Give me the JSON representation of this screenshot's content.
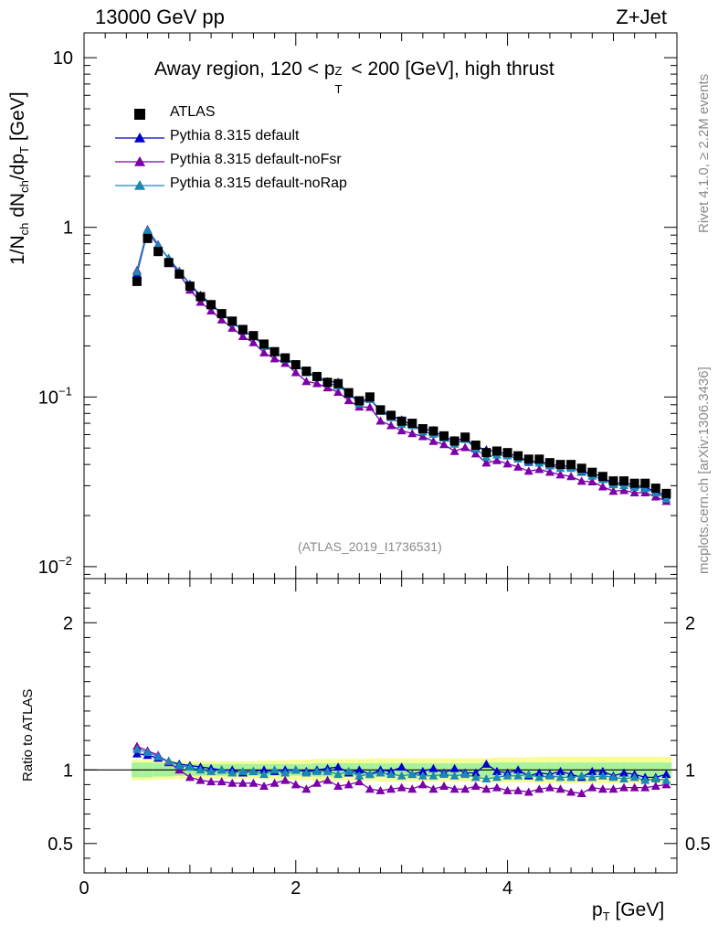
{
  "header": {
    "left": "13000 GeV pp",
    "right": "Z+Jet"
  },
  "title": {
    "prefix": "Away region, 120 < p",
    "sup": "Z",
    "sub": "T",
    "suffix": " < 200 [GeV], high thrust"
  },
  "side_text": {
    "rivet": "Rivet 4.1.0, ≥ 2.2M events",
    "mcplots": "mcplots.cern.ch [arXiv:1306.3436]"
  },
  "watermark": "(ATLAS_2019_I1736531)",
  "ylabel_top": {
    "a": "1/N",
    "a_sub": "ch",
    "b": " dN",
    "b_sub": "ch",
    "c": "/dp",
    "c_sub": "T",
    "d": " [GeV]"
  },
  "ylabel_bottom": "Ratio to ATLAS",
  "xlabel": {
    "main": "p",
    "sub": "T",
    "unit": " [GeV]"
  },
  "legend": [
    {
      "label": "ATLAS",
      "color": "#000000",
      "marker": "square"
    },
    {
      "label": "Pythia 8.315 default",
      "color": "#0000cc",
      "marker": "triangle"
    },
    {
      "label": "Pythia 8.315 default-noFsr",
      "color": "#7b00a8",
      "marker": "triangle"
    },
    {
      "label": "Pythia 8.315 default-noRap",
      "color": "#1a8ab4",
      "marker": "triangle"
    }
  ],
  "chart_data": {
    "type": "line",
    "xlim": [
      0,
      5.6
    ],
    "upper": {
      "scale": "log",
      "ylim": [
        0.0085,
        14
      ],
      "yticks": [
        {
          "value": 10,
          "label": "10"
        },
        {
          "value": 1,
          "label": "1"
        },
        {
          "value": 0.1,
          "label": "10",
          "exp": "−1"
        },
        {
          "value": 0.01,
          "label": "10",
          "exp": "−2"
        }
      ]
    },
    "lower": {
      "scale": "linear",
      "ylim": [
        0.3,
        2.3
      ],
      "yticks": [
        {
          "value": 0.5,
          "label": "0.5"
        },
        {
          "value": 1,
          "label": "1"
        },
        {
          "value": 2,
          "label": "2"
        }
      ],
      "reference_line": 1
    },
    "xticks": [
      {
        "value": 0,
        "label": "0"
      },
      {
        "value": 2,
        "label": "2"
      },
      {
        "value": 4,
        "label": "4"
      }
    ],
    "x": [
      0.5,
      0.6,
      0.7,
      0.8,
      0.9,
      1.0,
      1.1,
      1.2,
      1.3,
      1.4,
      1.5,
      1.6,
      1.7,
      1.8,
      1.9,
      2.0,
      2.1,
      2.2,
      2.3,
      2.4,
      2.5,
      2.6,
      2.7,
      2.8,
      2.9,
      3.0,
      3.1,
      3.2,
      3.3,
      3.4,
      3.5,
      3.6,
      3.7,
      3.8,
      3.9,
      4.0,
      4.1,
      4.2,
      4.3,
      4.4,
      4.5,
      4.6,
      4.7,
      4.8,
      4.9,
      5.0,
      5.1,
      5.2,
      5.3,
      5.4,
      5.5
    ],
    "atlas": [
      0.48,
      0.86,
      0.72,
      0.62,
      0.53,
      0.45,
      0.39,
      0.35,
      0.31,
      0.28,
      0.25,
      0.23,
      0.205,
      0.185,
      0.17,
      0.155,
      0.142,
      0.132,
      0.122,
      0.12,
      0.106,
      0.095,
      0.1,
      0.084,
      0.078,
      0.072,
      0.07,
      0.065,
      0.063,
      0.059,
      0.055,
      0.058,
      0.052,
      0.047,
      0.048,
      0.047,
      0.045,
      0.043,
      0.043,
      0.041,
      0.04,
      0.04,
      0.038,
      0.036,
      0.034,
      0.032,
      0.032,
      0.031,
      0.031,
      0.029,
      0.027
    ],
    "atlas_band_green": [
      0.05,
      0.05,
      0.045,
      0.045,
      0.04,
      0.04,
      0.04,
      0.04,
      0.04,
      0.04,
      0.04,
      0.04,
      0.04,
      0.04,
      0.04,
      0.04,
      0.04,
      0.045,
      0.045,
      0.045,
      0.045,
      0.045,
      0.045,
      0.045,
      0.045,
      0.045,
      0.045,
      0.045,
      0.045,
      0.045,
      0.045,
      0.045,
      0.045,
      0.05,
      0.05,
      0.05,
      0.05,
      0.05,
      0.05,
      0.05,
      0.05,
      0.05,
      0.05,
      0.05,
      0.05,
      0.05,
      0.05,
      0.05,
      0.05,
      0.05,
      0.05
    ],
    "atlas_band_yellow": [
      0.07,
      0.07,
      0.065,
      0.065,
      0.06,
      0.06,
      0.06,
      0.06,
      0.06,
      0.06,
      0.06,
      0.06,
      0.065,
      0.065,
      0.065,
      0.07,
      0.07,
      0.075,
      0.075,
      0.075,
      0.075,
      0.075,
      0.075,
      0.08,
      0.08,
      0.08,
      0.08,
      0.08,
      0.08,
      0.08,
      0.08,
      0.08,
      0.08,
      0.08,
      0.085,
      0.085,
      0.085,
      0.085,
      0.09,
      0.09,
      0.09,
      0.09,
      0.09,
      0.09,
      0.09,
      0.09,
      0.09,
      0.09,
      0.09,
      0.09,
      0.09
    ],
    "series": [
      {
        "name": "Pythia 8.315 default",
        "color": "#0000cc",
        "ratio": [
          1.11,
          1.1,
          1.08,
          1.06,
          1.04,
          1.03,
          1.02,
          1.01,
          1.0,
          1.0,
          0.98,
          0.99,
          1.0,
          0.99,
          1.0,
          1.0,
          0.99,
          1.0,
          1.01,
          1.02,
          0.98,
          1.0,
          0.97,
          1.0,
          0.99,
          1.02,
          0.97,
          0.99,
          1.01,
          0.98,
          1.01,
          0.98,
          0.98,
          1.04,
          0.99,
          0.98,
          1.0,
          0.96,
          0.98,
          0.97,
          0.99,
          0.97,
          0.95,
          0.99,
          0.99,
          0.96,
          0.98,
          0.97,
          0.95,
          0.95,
          0.97
        ]
      },
      {
        "name": "Pythia 8.315 default-noFsr",
        "color": "#7b00a8",
        "ratio": [
          1.16,
          1.13,
          1.1,
          1.05,
          1.0,
          0.95,
          0.93,
          0.92,
          0.92,
          0.91,
          0.91,
          0.91,
          0.89,
          0.91,
          0.93,
          0.9,
          0.87,
          0.91,
          0.93,
          0.89,
          0.9,
          0.92,
          0.87,
          0.86,
          0.87,
          0.88,
          0.87,
          0.9,
          0.87,
          0.89,
          0.87,
          0.87,
          0.89,
          0.87,
          0.88,
          0.86,
          0.86,
          0.85,
          0.87,
          0.88,
          0.87,
          0.85,
          0.84,
          0.88,
          0.87,
          0.87,
          0.88,
          0.88,
          0.88,
          0.89,
          0.9
        ]
      },
      {
        "name": "Pythia 8.315 default-noRap",
        "color": "#1a8ab4",
        "ratio": [
          1.14,
          1.12,
          1.09,
          1.06,
          1.03,
          1.02,
          1.0,
          0.99,
          1.0,
          0.98,
          0.99,
          0.99,
          0.97,
          1.0,
          0.98,
          1.0,
          0.98,
          0.99,
          0.99,
          0.97,
          0.99,
          0.96,
          0.97,
          0.98,
          0.97,
          0.96,
          0.97,
          0.96,
          0.96,
          0.97,
          0.96,
          0.97,
          0.95,
          0.94,
          0.95,
          0.96,
          0.96,
          0.97,
          0.95,
          0.96,
          0.95,
          0.95,
          0.96,
          0.95,
          0.96,
          0.95,
          0.94,
          0.95,
          0.93,
          0.94,
          0.93
        ]
      }
    ]
  }
}
